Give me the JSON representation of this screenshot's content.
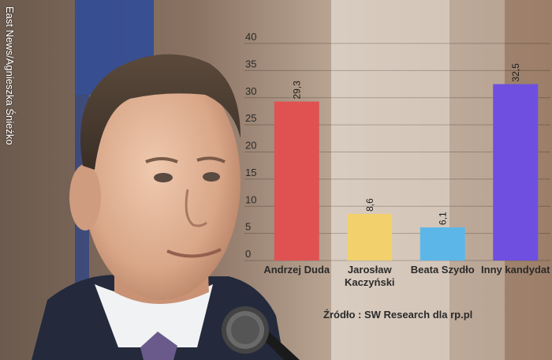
{
  "photo_credit": "East News/Agnieszka Śnieżko",
  "source": "Źródło : SW Research dla rp.pl",
  "chart_data": {
    "type": "bar",
    "categories": [
      [
        "Andrzej Duda"
      ],
      [
        "Jarosław",
        "Kaczyński"
      ],
      [
        "Beata Szydło"
      ],
      [
        "Inny kandydat"
      ]
    ],
    "values": [
      29.3,
      8.6,
      6.1,
      32.5
    ],
    "value_labels": [
      "29,3",
      "8,6",
      "6,1",
      "32,5"
    ],
    "colors": [
      "#e05252",
      "#f2d06b",
      "#5cb7e8",
      "#6e4fe0"
    ],
    "y_ticks": [
      0,
      5,
      10,
      15,
      20,
      25,
      30,
      35,
      40
    ],
    "ylim": [
      0,
      40
    ],
    "grid": true,
    "title": "",
    "xlabel": "",
    "ylabel": ""
  }
}
